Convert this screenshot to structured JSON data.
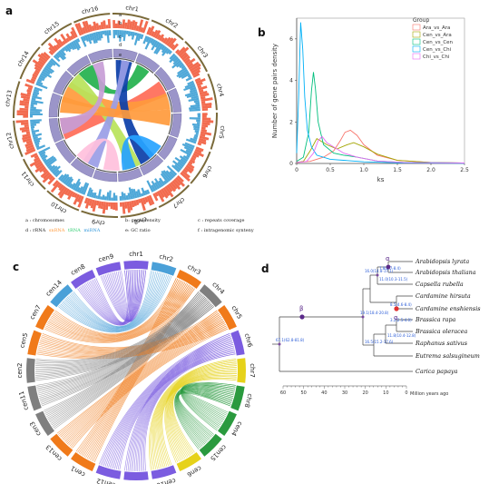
{
  "panels": {
    "a": "a",
    "b": "b",
    "c": "c",
    "d": "d"
  },
  "panel_a": {
    "chromosomes": [
      "chr1",
      "chr2",
      "chr3",
      "chr4",
      "chr5",
      "chr6",
      "chr7",
      "chr8",
      "chr9",
      "chr10",
      "chr11",
      "chr12",
      "chr13",
      "chr14",
      "chr15",
      "chr16"
    ],
    "ring_letters": [
      "a",
      "b",
      "c",
      "d",
      "e",
      "f"
    ],
    "legend": {
      "line1": [
        "a : chromosomes",
        "b: gene density",
        "c : repeats coverage"
      ],
      "line2_prefix": "d : rRNA",
      "line2_items": [
        {
          "text": "snRNA",
          "color": "#ff9a3c"
        },
        {
          "text": "tRNA",
          "color": "#2ecc71"
        },
        {
          "text": "miRNA",
          "color": "#3498db"
        }
      ],
      "line2_mid": "e: GC ratio",
      "line2_end": "f : intragenomic synteny"
    },
    "colors": {
      "density": "#f26b4f",
      "gc": "#4fa8d8",
      "chrom": "#9b95c9"
    }
  },
  "chart_data": [
    {
      "type": "line",
      "panel": "b",
      "xlabel": "ks",
      "ylabel": "Number of gene pairs density",
      "xlim": [
        0,
        2.5
      ],
      "ylim": [
        0,
        7
      ],
      "xticks": [
        "0",
        "0.5",
        "1.0",
        "1.5",
        "2.0",
        "2.5"
      ],
      "yticks": [
        "0",
        "2",
        "4",
        "6"
      ],
      "legend_title": "Group",
      "legend_position": "top-right",
      "series": [
        {
          "name": "Ara_vs_Ara",
          "color": "#f8766d",
          "points": [
            [
              0,
              0.05
            ],
            [
              0.2,
              0.1
            ],
            [
              0.4,
              0.3
            ],
            [
              0.55,
              0.6
            ],
            [
              0.65,
              1.1
            ],
            [
              0.72,
              1.5
            ],
            [
              0.8,
              1.6
            ],
            [
              0.9,
              1.35
            ],
            [
              1.0,
              0.9
            ],
            [
              1.2,
              0.4
            ],
            [
              1.5,
              0.15
            ],
            [
              2.0,
              0.05
            ],
            [
              2.5,
              0.02
            ]
          ]
        },
        {
          "name": "Cen_vs_Ara",
          "color": "#a3a500",
          "points": [
            [
              0,
              0.05
            ],
            [
              0.1,
              0.1
            ],
            [
              0.2,
              0.6
            ],
            [
              0.3,
              1.2
            ],
            [
              0.45,
              0.9
            ],
            [
              0.6,
              0.7
            ],
            [
              0.75,
              0.9
            ],
            [
              0.85,
              1.0
            ],
            [
              1.0,
              0.8
            ],
            [
              1.2,
              0.45
            ],
            [
              1.5,
              0.15
            ],
            [
              2.0,
              0.05
            ],
            [
              2.5,
              0.02
            ]
          ]
        },
        {
          "name": "Cen_vs_Cen",
          "color": "#00bf7d",
          "points": [
            [
              0,
              0.1
            ],
            [
              0.1,
              0.3
            ],
            [
              0.18,
              1.5
            ],
            [
              0.22,
              3.5
            ],
            [
              0.25,
              4.4
            ],
            [
              0.28,
              3.6
            ],
            [
              0.32,
              2.0
            ],
            [
              0.4,
              0.9
            ],
            [
              0.55,
              0.5
            ],
            [
              0.7,
              0.4
            ],
            [
              0.9,
              0.3
            ],
            [
              1.2,
              0.12
            ],
            [
              1.6,
              0.05
            ],
            [
              2.5,
              0.02
            ]
          ]
        },
        {
          "name": "Cen_vs_Chi",
          "color": "#00b0f6",
          "points": [
            [
              0,
              0.5
            ],
            [
              0.03,
              3.2
            ],
            [
              0.06,
              6.8
            ],
            [
              0.09,
              5.5
            ],
            [
              0.12,
              3.2
            ],
            [
              0.16,
              1.6
            ],
            [
              0.22,
              0.8
            ],
            [
              0.3,
              0.4
            ],
            [
              0.5,
              0.2
            ],
            [
              1.0,
              0.08
            ],
            [
              1.5,
              0.03
            ],
            [
              2.5,
              0.01
            ]
          ]
        },
        {
          "name": "Chi_vs_Chi",
          "color": "#e76bf3",
          "points": [
            [
              0,
              0.05
            ],
            [
              0.15,
              0.1
            ],
            [
              0.25,
              0.5
            ],
            [
              0.32,
              1.1
            ],
            [
              0.38,
              1.3
            ],
            [
              0.45,
              1.0
            ],
            [
              0.55,
              0.8
            ],
            [
              0.7,
              0.5
            ],
            [
              0.9,
              0.3
            ],
            [
              1.2,
              0.12
            ],
            [
              1.6,
              0.05
            ],
            [
              2.5,
              0.02
            ]
          ]
        }
      ]
    }
  ],
  "panel_c": {
    "chromosomes": [
      "chr1",
      "chr2",
      "chr3",
      "chr4",
      "chr5",
      "chr6",
      "chr7",
      "chr8",
      "cen4",
      "cen15",
      "cen6",
      "cen16",
      "cen10",
      "cen12",
      "cen1",
      "cen13",
      "cen3",
      "cen11",
      "cen2",
      "cen5",
      "cen7",
      "cen14",
      "cen8",
      "cen9"
    ]
  },
  "panel_d": {
    "taxa": [
      "Arabidopsis lyrata",
      "Arabidopsis thaliana",
      "Capsella rubella",
      "Cardamine hirsuta",
      "Cardamine enshiensis",
      "Brassica rapa",
      "Brassica oleracea",
      "Raphanus sativus",
      "Eutrema salsugineum",
      "Carica papaya"
    ],
    "node_labels": [
      "7.8(6.7-8.4)",
      "11.0(10.3-11.5)",
      "16.0(14.8-17.1)",
      "8.5(4.6-8.4)",
      "19.1(18.4-20.8)",
      "3.2(2.5-4.0)",
      "11.8(10.4-12.8)",
      "16.5(15.2-17.6)",
      "67.1(62.8-81.8)"
    ],
    "greek": [
      "α",
      "α",
      "β"
    ],
    "axis_ticks": [
      "60",
      "50",
      "40",
      "30",
      "20",
      "10",
      "0"
    ],
    "axis_label": "Million years ago"
  }
}
